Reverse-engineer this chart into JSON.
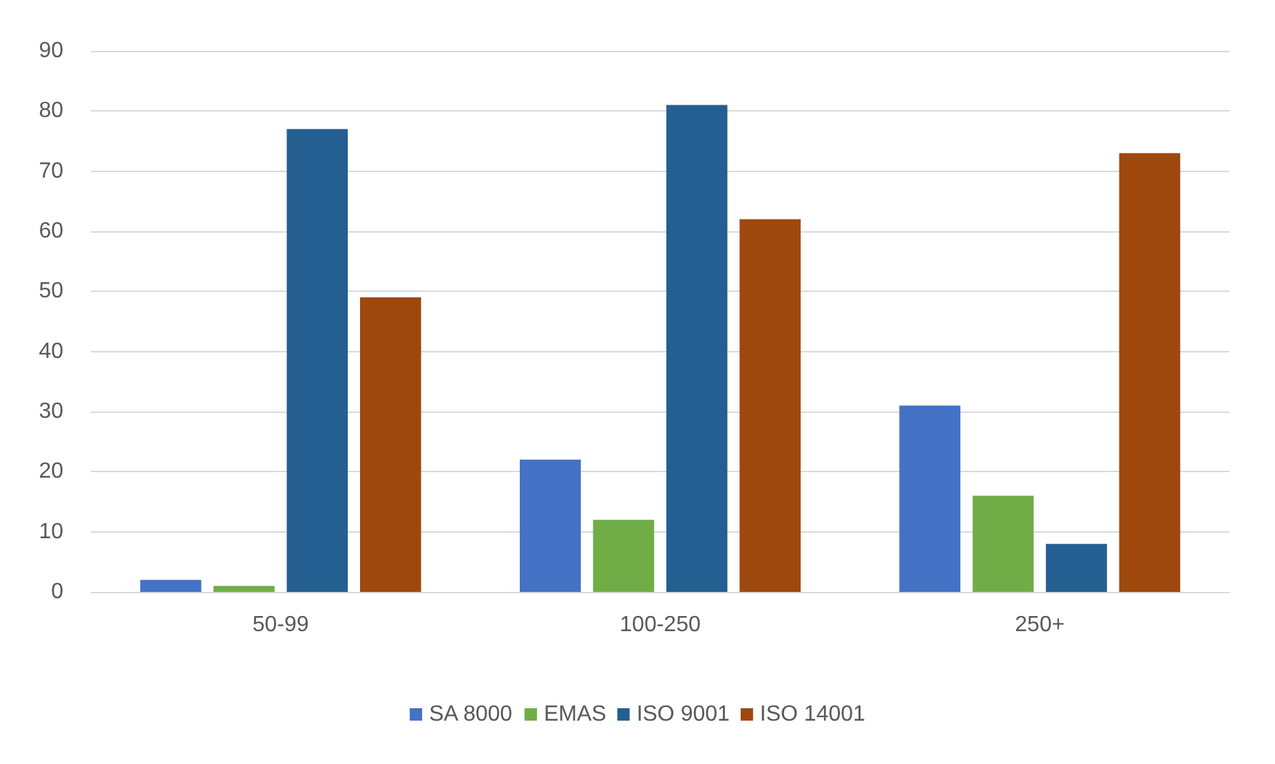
{
  "chart_data": {
    "type": "bar",
    "categories": [
      "50-99",
      "100-250",
      "250+"
    ],
    "series": [
      {
        "name": "SA 8000",
        "color": "#4472c4",
        "values": [
          2,
          22,
          31
        ]
      },
      {
        "name": "EMAS",
        "color": "#70ad47",
        "values": [
          1,
          12,
          16
        ]
      },
      {
        "name": "ISO 9001",
        "color": "#255e91",
        "values": [
          77,
          81,
          8
        ]
      },
      {
        "name": "ISO 14001",
        "color": "#9e480e",
        "values": [
          49,
          62,
          73
        ]
      }
    ],
    "ylim": [
      0,
      90
    ],
    "yticks": [
      0,
      10,
      20,
      30,
      40,
      50,
      60,
      70,
      80,
      90
    ],
    "grid": "y",
    "legend": "bottom"
  }
}
